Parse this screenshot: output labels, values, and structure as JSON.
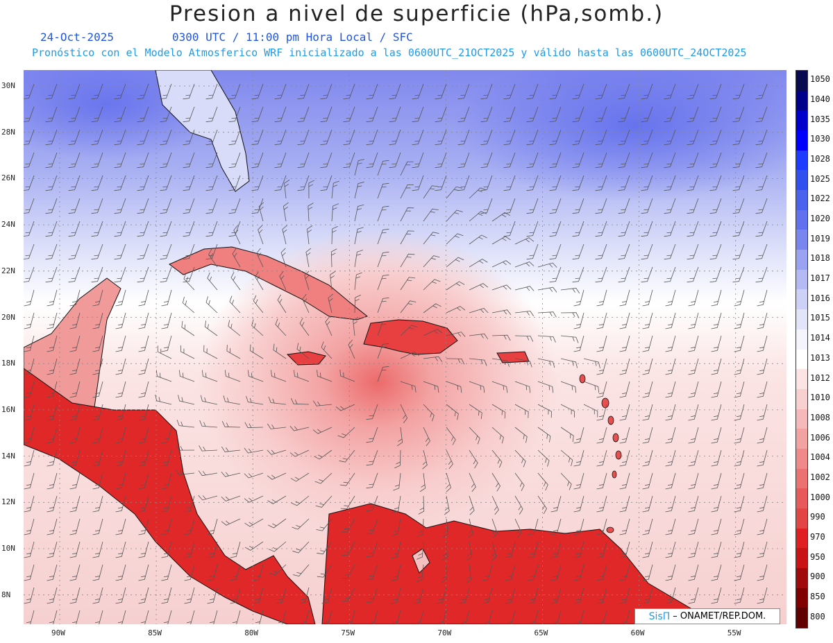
{
  "header": {
    "title": "Presion a nivel de superficie (hPa,somb.)",
    "date": "24-Oct-2025",
    "valid_time": "0300 UTC / 11:00 pm Hora Local / SFC",
    "model_info": "Pronóstico con el Modelo Atmosferico WRF inicializado a las 0600UTC_21OCT2025 y válido hasta las  0600UTC_24OCT2025"
  },
  "map": {
    "lat_labels": [
      "30N",
      "28N",
      "26N",
      "24N",
      "22N",
      "20N",
      "18N",
      "16N",
      "14N",
      "12N",
      "10N",
      "8N"
    ],
    "lon_labels": [
      "90W",
      "85W",
      "80W",
      "75W",
      "70W",
      "65W",
      "60W",
      "55W"
    ],
    "colors": {
      "ocean_high": "#8890ee",
      "ocean_low": "#f4d4d4",
      "land_low": "#e83030",
      "grid": "#888888"
    }
  },
  "legend": {
    "labels": [
      "1050",
      "1040",
      "1035",
      "1030",
      "1028",
      "1025",
      "1022",
      "1020",
      "1019",
      "1018",
      "1017",
      "1016",
      "1015",
      "1014",
      "1013",
      "1012",
      "1010",
      "1008",
      "1006",
      "1004",
      "1002",
      "1000",
      "990",
      "970",
      "950",
      "900",
      "850",
      "800"
    ],
    "colors": [
      "#0a0a50",
      "#00008b",
      "#0000cd",
      "#0000ff",
      "#1e3cff",
      "#3050f0",
      "#4a62ee",
      "#6070ee",
      "#7a86f0",
      "#9aa2f2",
      "#b4baf4",
      "#cdd0f7",
      "#e2e4fa",
      "#f4f4fd",
      "#ffffff",
      "#fce4e4",
      "#f9d0d0",
      "#f6b9b9",
      "#f3a2a2",
      "#f08a8a",
      "#ec7272",
      "#e85a5a",
      "#e34444",
      "#e02020",
      "#c81414",
      "#a00a0a",
      "#800000",
      "#600000"
    ]
  },
  "credit": {
    "brand": "SisΠ",
    "text": "– ONAMET/REP.DOM."
  }
}
